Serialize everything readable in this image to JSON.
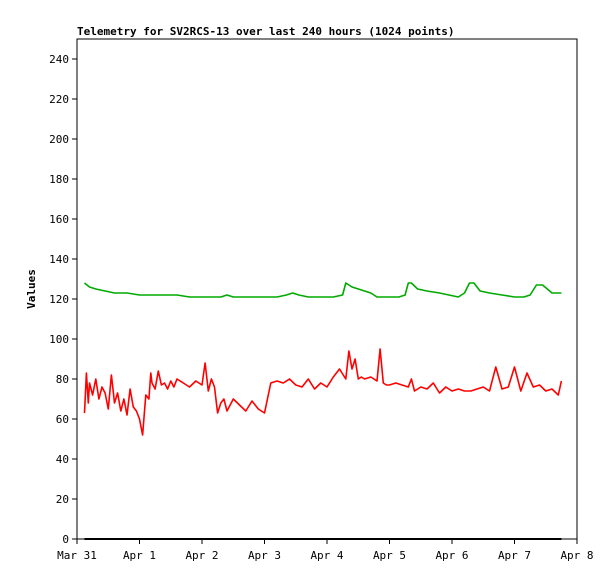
{
  "chart_data": {
    "type": "line",
    "title": "Telemetry for SV2RCS-13 over last 240 hours (1024 points)",
    "xlabel": "",
    "ylabel": "Values",
    "ylim": [
      0,
      250
    ],
    "xlim": [
      "Mar 31",
      "Apr 8"
    ],
    "x_ticks": [
      "Mar 31",
      "Apr 1",
      "Apr 2",
      "Apr 3",
      "Apr 4",
      "Apr 5",
      "Apr 6",
      "Apr 7",
      "Apr 8"
    ],
    "y_ticks": [
      0,
      20,
      40,
      60,
      80,
      100,
      120,
      140,
      160,
      180,
      200,
      220,
      240
    ],
    "grid": false,
    "legend": "none",
    "series": [
      {
        "color": "#00aa00",
        "x": [
          0.12,
          0.2,
          0.3,
          0.45,
          0.6,
          0.8,
          1.0,
          1.2,
          1.4,
          1.6,
          1.8,
          1.95,
          2.1,
          2.3,
          2.4,
          2.5,
          2.6,
          2.8,
          3.0,
          3.2,
          3.35,
          3.45,
          3.55,
          3.7,
          3.9,
          4.1,
          4.25,
          4.3,
          4.4,
          4.5,
          4.6,
          4.7,
          4.8,
          5.0,
          5.15,
          5.25,
          5.3,
          5.35,
          5.45,
          5.6,
          5.8,
          5.95,
          6.1,
          6.2,
          6.28,
          6.35,
          6.45,
          6.6,
          6.8,
          7.0,
          7.15,
          7.25,
          7.35,
          7.45,
          7.6,
          7.75
        ],
        "values": [
          128,
          126,
          125,
          124,
          123,
          123,
          122,
          122,
          122,
          122,
          121,
          121,
          121,
          121,
          122,
          121,
          121,
          121,
          121,
          121,
          122,
          123,
          122,
          121,
          121,
          121,
          122,
          128,
          126,
          125,
          124,
          123,
          121,
          121,
          121,
          122,
          128,
          128,
          125,
          124,
          123,
          122,
          121,
          123,
          128,
          128,
          124,
          123,
          122,
          121,
          121,
          122,
          127,
          127,
          123,
          123
        ]
      },
      {
        "color": "#ff0000",
        "x": [
          0.12,
          0.15,
          0.18,
          0.2,
          0.25,
          0.3,
          0.35,
          0.4,
          0.45,
          0.5,
          0.55,
          0.6,
          0.65,
          0.7,
          0.75,
          0.8,
          0.85,
          0.9,
          0.95,
          1.0,
          1.05,
          1.1,
          1.15,
          1.18,
          1.2,
          1.25,
          1.3,
          1.35,
          1.4,
          1.45,
          1.5,
          1.55,
          1.6,
          1.7,
          1.8,
          1.9,
          2.0,
          2.05,
          2.1,
          2.15,
          2.2,
          2.25,
          2.3,
          2.35,
          2.4,
          2.5,
          2.6,
          2.7,
          2.8,
          2.9,
          3.0,
          3.1,
          3.2,
          3.3,
          3.4,
          3.5,
          3.6,
          3.7,
          3.8,
          3.9,
          4.0,
          4.1,
          4.2,
          4.3,
          4.35,
          4.4,
          4.45,
          4.5,
          4.55,
          4.6,
          4.7,
          4.8,
          4.85,
          4.9,
          4.95,
          5.0,
          5.1,
          5.2,
          5.3,
          5.35,
          5.4,
          5.5,
          5.6,
          5.7,
          5.8,
          5.9,
          6.0,
          6.1,
          6.2,
          6.3,
          6.4,
          6.5,
          6.6,
          6.7,
          6.8,
          6.9,
          7.0,
          7.1,
          7.2,
          7.3,
          7.4,
          7.5,
          7.6,
          7.7,
          7.75
        ],
        "values": [
          63,
          83,
          68,
          78,
          72,
          80,
          70,
          76,
          73,
          65,
          82,
          68,
          73,
          64,
          70,
          62,
          75,
          66,
          64,
          60,
          52,
          72,
          70,
          83,
          78,
          75,
          84,
          77,
          78,
          75,
          79,
          76,
          80,
          78,
          76,
          79,
          77,
          88,
          74,
          80,
          76,
          63,
          68,
          70,
          64,
          70,
          67,
          64,
          69,
          65,
          63,
          78,
          79,
          78,
          80,
          77,
          76,
          80,
          75,
          78,
          76,
          81,
          85,
          80,
          94,
          85,
          90,
          80,
          81,
          80,
          81,
          79,
          95,
          78,
          77,
          77,
          78,
          77,
          76,
          80,
          74,
          76,
          75,
          78,
          73,
          76,
          74,
          75,
          74,
          74,
          75,
          76,
          74,
          86,
          75,
          76,
          86,
          74,
          83,
          76,
          77,
          74,
          75,
          72,
          79
        ]
      },
      {
        "color": "#000000",
        "x": [
          0.12,
          7.75
        ],
        "values": [
          0,
          0
        ]
      }
    ]
  }
}
